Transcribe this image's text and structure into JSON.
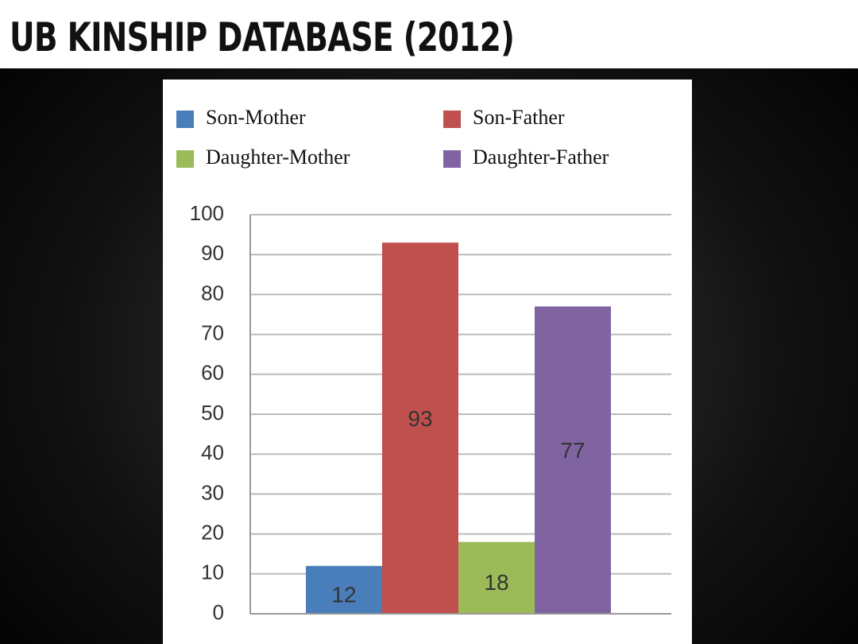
{
  "slide": {
    "title": "UB KINSHIP DATABASE (2012)"
  },
  "chart_data": {
    "type": "bar",
    "series": [
      {
        "name": "Son-Mother",
        "color": "#4a7ebb",
        "values": [
          12
        ]
      },
      {
        "name": "Son-Father",
        "color": "#c0504d",
        "values": [
          93
        ]
      },
      {
        "name": "Daughter-Mother",
        "color": "#9bbb59",
        "values": [
          18
        ]
      },
      {
        "name": "Daughter-Father",
        "color": "#8064a2",
        "values": [
          77
        ]
      }
    ],
    "ylim": [
      0,
      100
    ],
    "yticks": [
      0,
      10,
      20,
      30,
      40,
      50,
      60,
      70,
      80,
      90,
      100
    ],
    "grid": true,
    "legend": "top"
  }
}
